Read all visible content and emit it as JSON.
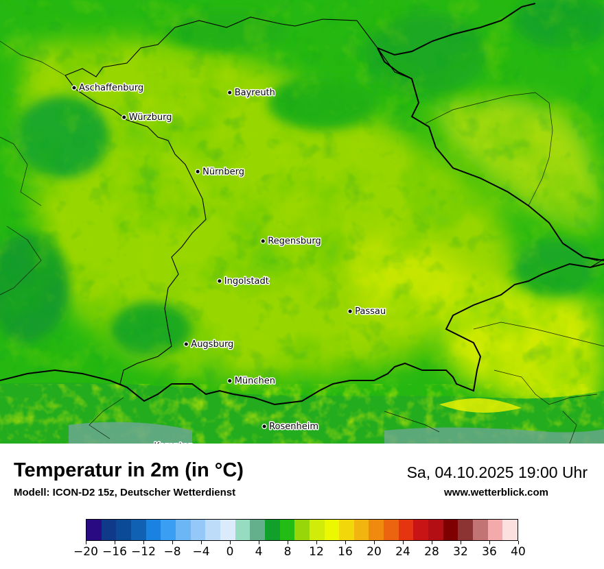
{
  "map": {
    "cities": [
      {
        "name": "Aschaffenburg",
        "lat": 49.975,
        "lon": 9.15
      },
      {
        "name": "Würzburg",
        "lat": 49.79,
        "lon": 9.93
      },
      {
        "name": "Bayreuth",
        "lat": 49.945,
        "lon": 11.58
      },
      {
        "name": "Nürnberg",
        "lat": 49.45,
        "lon": 11.08
      },
      {
        "name": "Regensburg",
        "lat": 49.015,
        "lon": 12.1
      },
      {
        "name": "Ingolstadt",
        "lat": 48.765,
        "lon": 11.42
      },
      {
        "name": "Passau",
        "lat": 48.575,
        "lon": 13.46
      },
      {
        "name": "Augsburg",
        "lat": 48.37,
        "lon": 10.9
      },
      {
        "name": "München",
        "lat": 48.14,
        "lon": 11.58
      },
      {
        "name": "Rosenheim",
        "lat": 47.855,
        "lon": 12.12
      },
      {
        "name": "Kempten",
        "lat": 47.73,
        "lon": 10.32
      }
    ]
  },
  "header": {
    "title": "Temperatur in 2m (in °C)",
    "model": "Modell: ICON-D2 15z, Deutscher Wetterdienst",
    "datetime": "Sa, 04.10.2025 19:00 Uhr",
    "website": "www.wetterblick.com"
  },
  "legend": {
    "min": -20,
    "max": 40,
    "step": 2,
    "tick_labels": [
      "−20",
      "−16",
      "−12",
      "−8",
      "−4",
      "0",
      "4",
      "8",
      "12",
      "16",
      "20",
      "24",
      "28",
      "32",
      "36",
      "40"
    ],
    "colors": [
      "#2a0a82",
      "#0f3a8a",
      "#0b4a96",
      "#1060b4",
      "#1a82e0",
      "#3a9ef2",
      "#6cb6f6",
      "#94c8f8",
      "#bcdcfa",
      "#dcebfc",
      "#96dcc0",
      "#64b08c",
      "#12a02c",
      "#22bc14",
      "#98d60a",
      "#d2ec0a",
      "#ecf800",
      "#f2d80a",
      "#f2b40e",
      "#f08a0e",
      "#ec6410",
      "#e43410",
      "#c81414",
      "#b20e14",
      "#7e0000",
      "#8c3434",
      "#c27474",
      "#f4aaaa",
      "#fce0e0"
    ]
  }
}
